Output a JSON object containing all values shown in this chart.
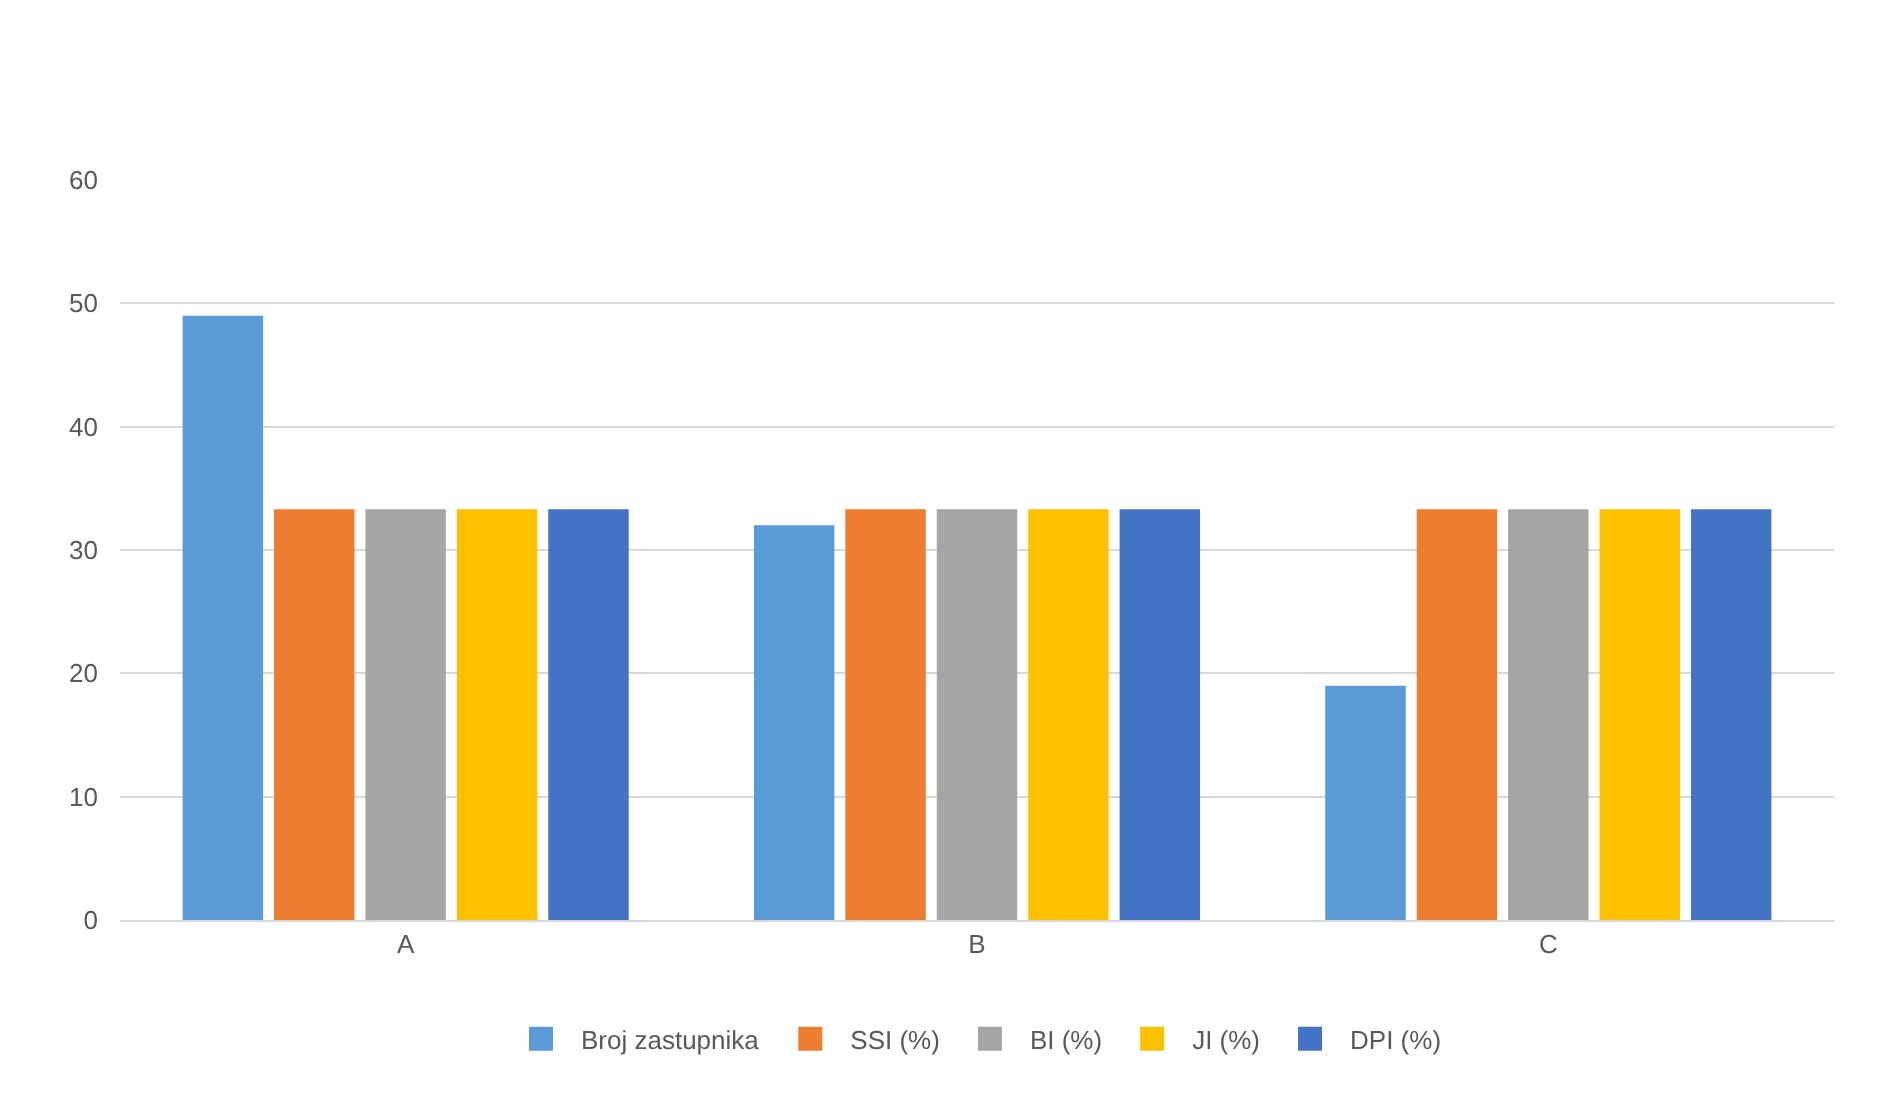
{
  "chart_data": {
    "type": "bar",
    "categories": [
      "A",
      "B",
      "C"
    ],
    "series": [
      {
        "name": "Broj zastupnika",
        "color": "#5b9bd5",
        "values": [
          49,
          32,
          19
        ]
      },
      {
        "name": "SSI (%)",
        "color": "#ed7d31",
        "values": [
          33.3,
          33.3,
          33.3
        ]
      },
      {
        "name": "BI (%)",
        "color": "#a5a5a5",
        "values": [
          33.3,
          33.3,
          33.3
        ]
      },
      {
        "name": "JI (%)",
        "color": "#ffc000",
        "values": [
          33.3,
          33.3,
          33.3
        ]
      },
      {
        "name": "DPI (%)",
        "color": "#4472c4",
        "values": [
          33.3,
          33.3,
          33.3
        ]
      }
    ],
    "ylim": [
      0,
      60
    ],
    "yticks": [
      0,
      10,
      20,
      30,
      40,
      50,
      60
    ],
    "grid": "y",
    "legend": "bottom"
  }
}
